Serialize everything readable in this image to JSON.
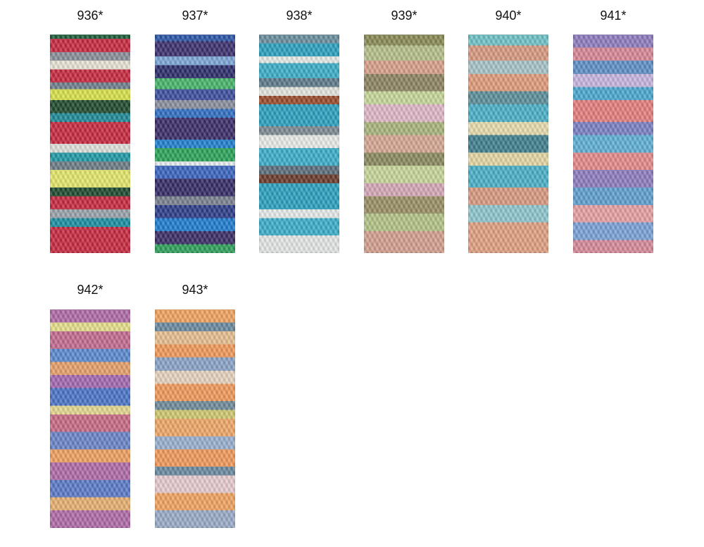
{
  "swatches": [
    {
      "label": "936*"
    },
    {
      "label": "937*"
    },
    {
      "label": "938*"
    },
    {
      "label": "939*"
    },
    {
      "label": "940*"
    },
    {
      "label": "941*"
    },
    {
      "label": "942*"
    },
    {
      "label": "943*"
    }
  ]
}
